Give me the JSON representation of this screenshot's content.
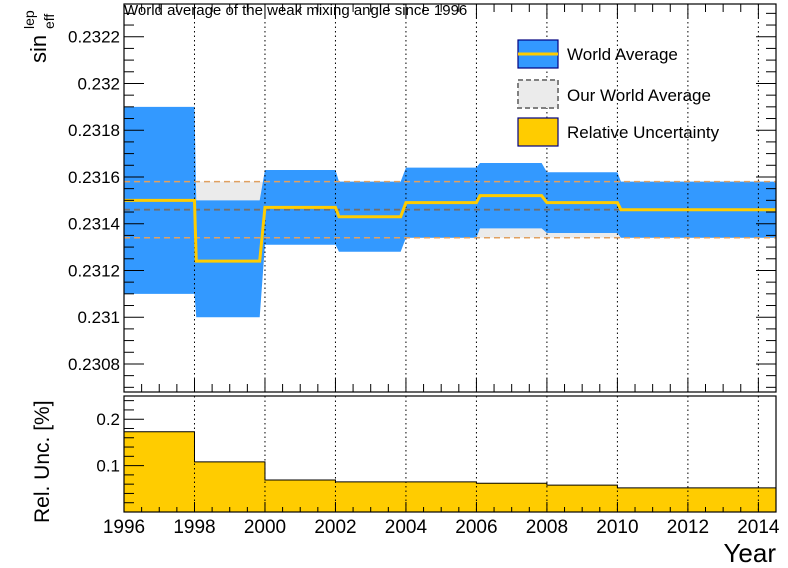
{
  "chart_data": [
    {
      "type": "area",
      "title": "World average of the weak mixing angle since 1996",
      "ylabel_main": "sin",
      "ylabel_sup": "lep",
      "ylabel_sub": "eff",
      "xlim": [
        1996,
        2014.5
      ],
      "ylim": [
        0.23068,
        0.23234
      ],
      "yticks": [
        0.2308,
        0.231,
        0.2312,
        0.2314,
        0.2316,
        0.2318,
        0.232,
        0.2322
      ],
      "ytick_labels": [
        "0.2308",
        "0.231",
        "0.2312",
        "0.2314",
        "0.2316",
        "0.2318",
        "0.232",
        "0.2322"
      ],
      "legend": {
        "position": "top-right",
        "entries": [
          {
            "label": "World Average",
            "color": "#3399ff",
            "line_color": "#ffcc00"
          },
          {
            "label": "Our World Average",
            "color": "#ebebeb",
            "border": "#808080"
          },
          {
            "label": "Relative Uncertainty",
            "color": "#ffcc00",
            "border": "#000080"
          }
        ]
      },
      "series": [
        {
          "name": "World Average",
          "x": [
            1996,
            1998,
            1998.05,
            1999.85,
            2000,
            2002,
            2002.1,
            2003.85,
            2004,
            2006,
            2006.1,
            2007.85,
            2008,
            2010,
            2010.1,
            2014.5
          ],
          "value": [
            0.2315,
            0.2315,
            0.23124,
            0.23124,
            0.23147,
            0.23147,
            0.23143,
            0.23143,
            0.23149,
            0.23149,
            0.23152,
            0.23152,
            0.23149,
            0.23149,
            0.23146,
            0.23146
          ],
          "upper": [
            0.2319,
            0.2319,
            0.2315,
            0.2315,
            0.23163,
            0.23163,
            0.23158,
            0.23158,
            0.23164,
            0.23164,
            0.23166,
            0.23166,
            0.23162,
            0.23162,
            0.23158,
            0.23158
          ],
          "lower": [
            0.2311,
            0.2311,
            0.231,
            0.231,
            0.23131,
            0.23131,
            0.23128,
            0.23128,
            0.23134,
            0.23134,
            0.23138,
            0.23138,
            0.23136,
            0.23136,
            0.23134,
            0.23134
          ]
        },
        {
          "name": "Our World Average",
          "value": 0.23146,
          "upper": 0.23158,
          "lower": 0.23134
        }
      ]
    },
    {
      "type": "area",
      "ylabel": "Rel. Unc. [%]",
      "xlabel": "Year",
      "xlim": [
        1996,
        2014.5
      ],
      "ylim": [
        0,
        0.25
      ],
      "yticks": [
        0.1,
        0.2
      ],
      "ytick_labels": [
        "0.1",
        "0.2"
      ],
      "xticks": [
        1996,
        1998,
        2000,
        2002,
        2004,
        2006,
        2008,
        2010,
        2012,
        2014
      ],
      "xtick_labels": [
        "1996",
        "1998",
        "2000",
        "2002",
        "2004",
        "2006",
        "2008",
        "2010",
        "2012",
        "2014"
      ],
      "series": [
        {
          "name": "Relative Uncertainty",
          "steps": [
            {
              "x0": 1996,
              "x1": 1998,
              "value": 0.173
            },
            {
              "x0": 1998,
              "x1": 2000,
              "value": 0.108
            },
            {
              "x0": 2000,
              "x1": 2002,
              "value": 0.069
            },
            {
              "x0": 2002,
              "x1": 2006,
              "value": 0.065
            },
            {
              "x0": 2006,
              "x1": 2008,
              "value": 0.062
            },
            {
              "x0": 2008,
              "x1": 2010,
              "value": 0.058
            },
            {
              "x0": 2010,
              "x1": 2014.5,
              "value": 0.052
            }
          ]
        }
      ]
    }
  ]
}
